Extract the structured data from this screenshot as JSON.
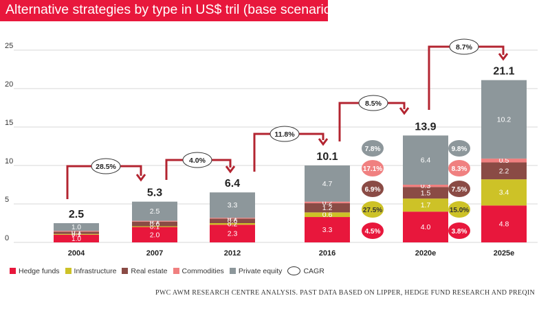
{
  "title": "Alternative strategies by type in US$ tril (base scenario)",
  "source": "PWC AWM RESEARCH CENTRE ANALYSIS. PAST DATA BASED ON LIPPER, HEDGE FUND RESEARCH AND PREQIN",
  "legend": [
    {
      "label": "Hedge funds",
      "color": "#e8173c"
    },
    {
      "label": "Infrastructure",
      "color": "#cdc227"
    },
    {
      "label": "Real estate",
      "color": "#8a4b45"
    },
    {
      "label": "Commodities",
      "color": "#f08080"
    },
    {
      "label": "Private equity",
      "color": "#8d979b"
    }
  ],
  "legend_cagr_label": "CAGR",
  "chart_data": {
    "type": "bar",
    "stacked": true,
    "categories": [
      "2004",
      "2007",
      "2012",
      "2016",
      "2020e",
      "2025e"
    ],
    "ylim": [
      0,
      25
    ],
    "yticks": [
      0,
      5,
      10,
      15,
      20,
      25
    ],
    "grid": true,
    "series": [
      {
        "name": "Hedge funds",
        "values": [
          1.0,
          2.0,
          2.3,
          3.3,
          4.0,
          4.8
        ],
        "labels": [
          "1.0",
          "2.0",
          "2.3",
          "3.3",
          "4.0",
          "4.8"
        ]
      },
      {
        "name": "Infrastructure",
        "values": [
          0.1,
          0.1,
          0.2,
          0.6,
          1.7,
          3.4
        ],
        "labels": [
          "0.1",
          "0.1",
          "0.2",
          "0.6",
          "1.7",
          "3.4"
        ]
      },
      {
        "name": "Real estate",
        "values": [
          0.3,
          0.6,
          0.6,
          1.2,
          1.5,
          2.2
        ],
        "labels": [
          "0.3",
          "0.6",
          "0.6",
          "1.2",
          "1.5",
          "2.2"
        ]
      },
      {
        "name": "Commodities",
        "values": [
          0.1,
          0.1,
          0.1,
          0.2,
          0.3,
          0.5
        ],
        "labels": [
          "0.1",
          "0.1",
          "0.1",
          "0.2",
          "0.3",
          "0.5"
        ]
      },
      {
        "name": "Private equity",
        "values": [
          1.0,
          2.5,
          3.3,
          4.7,
          6.4,
          10.2
        ],
        "labels": [
          "1.0",
          "2.5",
          "3.3",
          "4.7",
          "6.4",
          "10.2"
        ]
      }
    ],
    "totals": [
      "2.5",
      "5.3",
      "6.4",
      "10.1",
      "13.9",
      "21.1"
    ],
    "cagr_between_periods": [
      {
        "from": "2004",
        "to": "2007",
        "label": "28.5%"
      },
      {
        "from": "2007",
        "to": "2012",
        "label": "4.0%"
      },
      {
        "from": "2012",
        "to": "2016",
        "label": "11.8%"
      },
      {
        "from": "2016",
        "to": "2020e",
        "label": "8.5%"
      },
      {
        "from": "2020e",
        "to": "2025e",
        "label": "8.7%"
      }
    ],
    "cagr_by_type": [
      {
        "period": "2016-2020e",
        "values": {
          "Private equity": "7.8%",
          "Commodities": "17.1%",
          "Real estate": "6.9%",
          "Infrastructure": "27.5%",
          "Hedge funds": "4.5%"
        }
      },
      {
        "period": "2020e-2025e",
        "values": {
          "Private equity": "9.8%",
          "Commodities": "8.3%",
          "Real estate": "7.5%",
          "Infrastructure": "15.0%",
          "Hedge funds": "3.8%"
        }
      }
    ]
  }
}
